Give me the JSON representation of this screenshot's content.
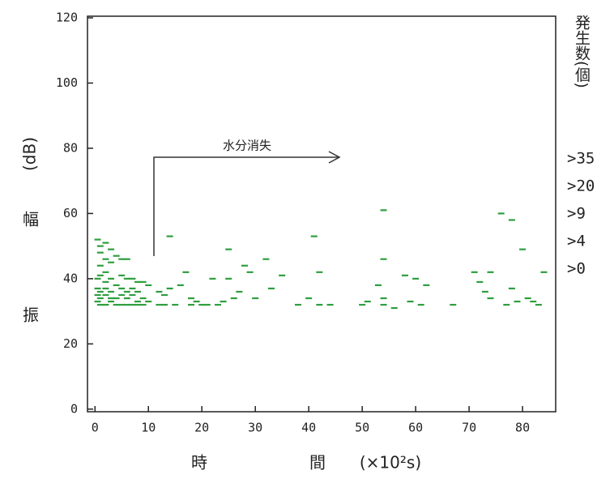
{
  "chart_data": {
    "type": "scatter",
    "x_label": [
      "時",
      "間",
      "(×10²s)"
    ],
    "y_label": [
      "振",
      "幅",
      "(dB)"
    ],
    "legend_title": "発生数(個)",
    "annotation": "水分消失",
    "xlim": [
      -1.4,
      86.2
    ],
    "ylim": [
      -0.8,
      120.5
    ],
    "xticks": [
      0,
      10,
      20,
      30,
      40,
      50,
      60,
      70,
      80
    ],
    "yticks": [
      0,
      20,
      40,
      60,
      80,
      100,
      120
    ],
    "series": [
      {
        "name": ">35",
        "color": "#e84848",
        "x": [],
        "y": []
      },
      {
        "name": ">20",
        "color": "#8b3a2a",
        "x": [],
        "y": []
      },
      {
        "name": ">9",
        "color": "#c03868",
        "x": [],
        "y": []
      },
      {
        "name": ">4",
        "color": "#60c0e8",
        "x": [],
        "y": []
      },
      {
        "name": ">0",
        "color": "#2e9e3e",
        "x": [
          0.5,
          1,
          2,
          1,
          2,
          3,
          4,
          5,
          6,
          1,
          2,
          3,
          1,
          0.5,
          2,
          3,
          5,
          6,
          7,
          8,
          9,
          10,
          0.5,
          1,
          2,
          3,
          4,
          5,
          6,
          7,
          8,
          0.5,
          1,
          2,
          3,
          4,
          5,
          6,
          7,
          8,
          9,
          0.5,
          1,
          2,
          3,
          4,
          5,
          6,
          7,
          8,
          9,
          10,
          12,
          13,
          14,
          14,
          12,
          13,
          15,
          16,
          17,
          18,
          18,
          19,
          20,
          21,
          22,
          23,
          24,
          25,
          25,
          26,
          27,
          28,
          29,
          30,
          32,
          33,
          35,
          38,
          40,
          41,
          42,
          42,
          44,
          50,
          51,
          53,
          54,
          54,
          54,
          54,
          56,
          58,
          59,
          60,
          61,
          62,
          67,
          71,
          72,
          73,
          74,
          74,
          76,
          77,
          78,
          78,
          79,
          80,
          81,
          82,
          83,
          84
        ],
        "y": [
          52,
          50,
          51,
          48,
          46,
          49,
          47,
          46,
          46,
          44,
          42,
          45,
          41,
          40,
          39,
          40,
          41,
          40,
          40,
          39,
          39,
          38,
          37,
          36,
          37,
          36,
          38,
          37,
          36,
          37,
          36,
          35,
          34,
          35,
          34,
          34,
          35,
          34,
          35,
          33,
          34,
          33,
          32,
          32,
          33,
          32,
          32,
          32,
          32,
          32,
          32,
          33,
          36,
          35,
          53,
          37,
          32,
          32,
          32,
          38,
          42,
          34,
          32,
          33,
          32,
          32,
          40,
          32,
          33,
          49,
          40,
          34,
          36,
          44,
          42,
          34,
          46,
          37,
          41,
          32,
          34,
          53,
          42,
          32,
          32,
          32,
          33,
          38,
          61,
          46,
          34,
          32,
          31,
          41,
          33,
          40,
          32,
          38,
          32,
          42,
          39,
          36,
          42,
          34,
          60,
          32,
          58,
          37,
          33,
          49,
          34,
          33,
          32,
          42
        ]
      }
    ]
  }
}
